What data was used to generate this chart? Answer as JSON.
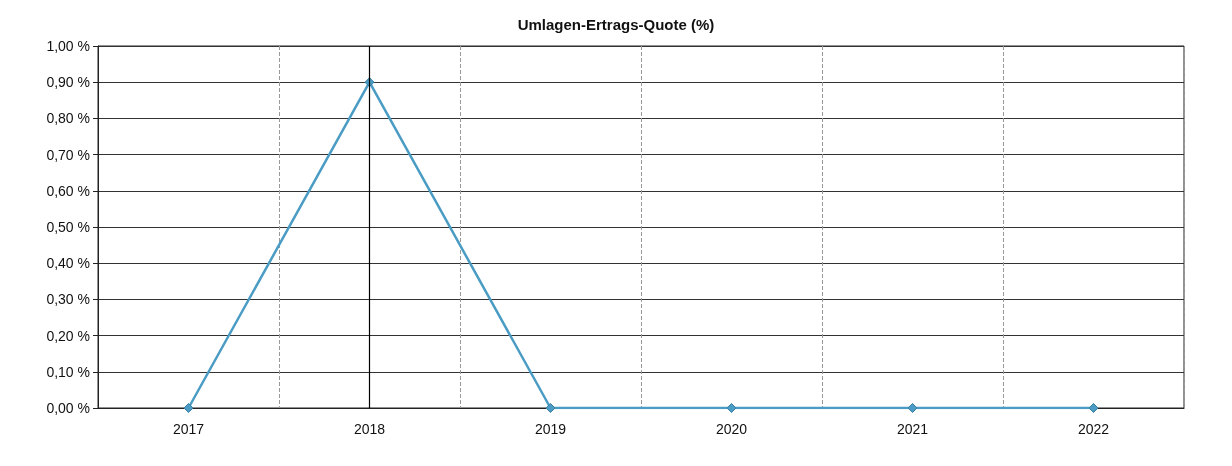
{
  "chart_data": {
    "type": "line",
    "title": "Umlagen-Ertrags-Quote (%)",
    "categories": [
      "2017",
      "2018",
      "2019",
      "2020",
      "2021",
      "2022"
    ],
    "series": [
      {
        "color": "#4a9cc4",
        "values": [
          0,
          0.9,
          0,
          0,
          0,
          0
        ]
      }
    ],
    "ylim": [
      0,
      1
    ],
    "yticks": [
      {
        "value": 0,
        "label": "0,00 %"
      },
      {
        "value": 0.1,
        "label": "0,10 %"
      },
      {
        "value": 0.2,
        "label": "0,20 %"
      },
      {
        "value": 0.3,
        "label": "0,30 %"
      },
      {
        "value": 0.4,
        "label": "0,40 %"
      },
      {
        "value": 0.5,
        "label": "0,50 %"
      },
      {
        "value": 0.6,
        "label": "0,60 %"
      },
      {
        "value": 0.7,
        "label": "0,70 %"
      },
      {
        "value": 0.8,
        "label": "0,80 %"
      },
      {
        "value": 0.9,
        "label": "0,90 %"
      },
      {
        "value": 1,
        "label": "1,00 %"
      }
    ],
    "ref_lines": [
      {
        "axis": "x",
        "value": "2018",
        "color": "#000000"
      }
    ],
    "grid": true,
    "marker": "diamond",
    "line_style": "solid"
  }
}
